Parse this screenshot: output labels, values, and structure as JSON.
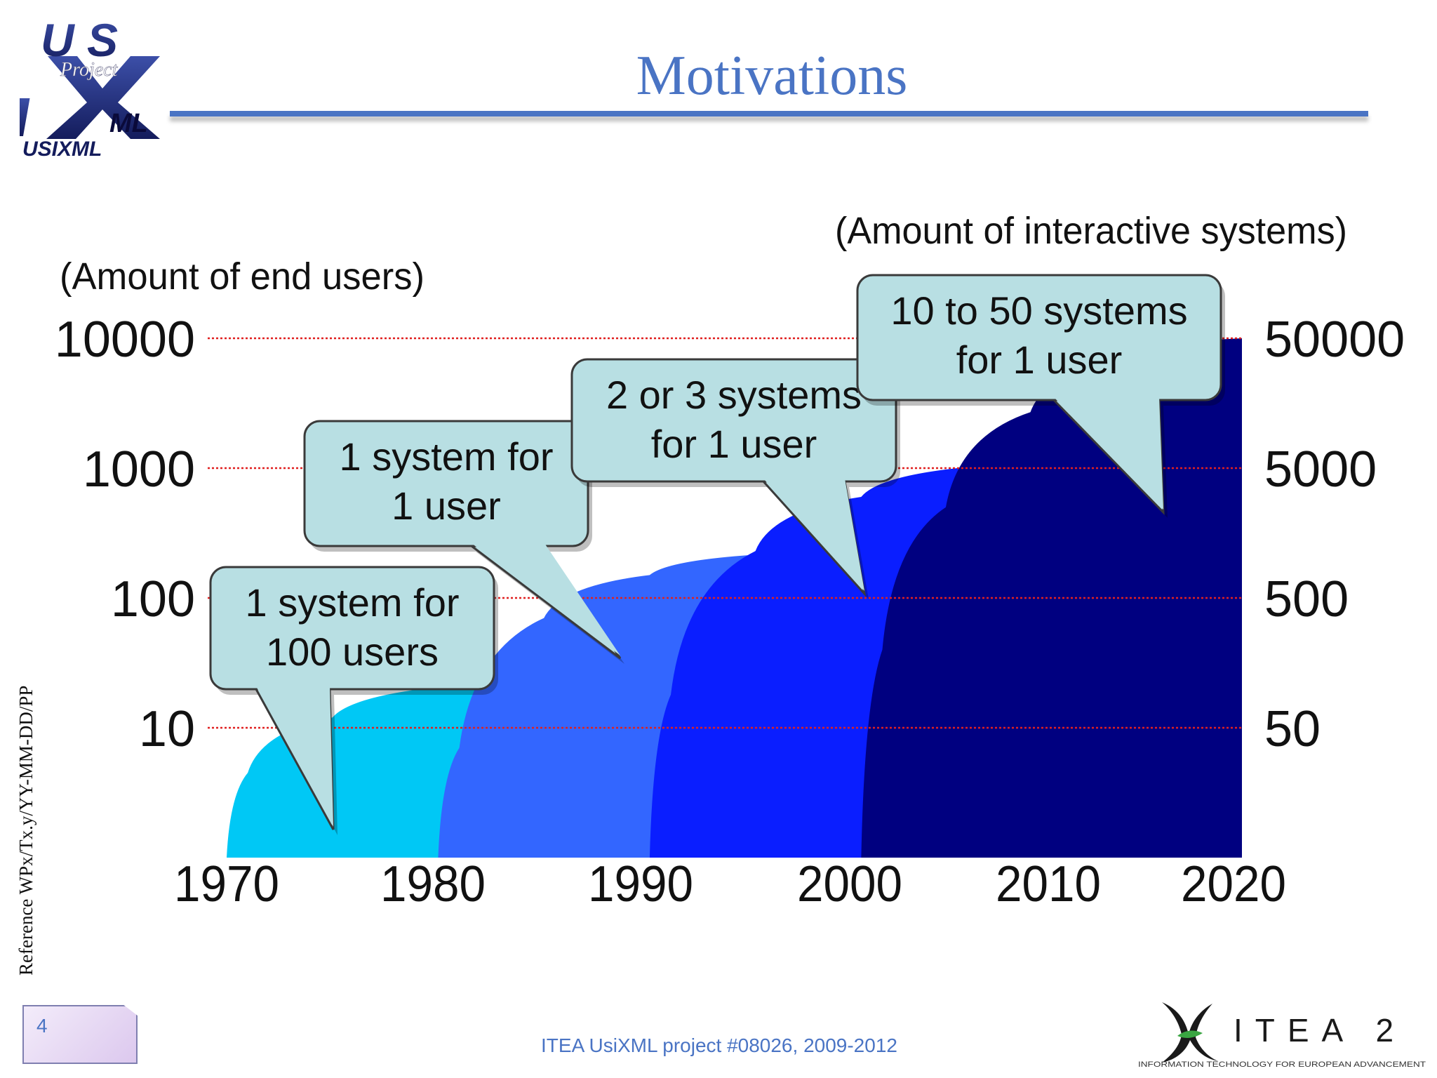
{
  "header": {
    "title": "Motivations",
    "logo": {
      "letters_top": "U S",
      "script": "Project",
      "letters_bottom": "ML",
      "name": "USIXML"
    }
  },
  "side_reference": "Reference WPx/Tx.y/YY-MM-DD/PP",
  "footer": {
    "page_number": "4",
    "text": "ITEA UsiXML project #08026, 2009-2012",
    "itea_logo": {
      "name": "ITEA 2",
      "tagline": "INFORMATION TECHNOLOGY FOR EUROPEAN ADVANCEMENT"
    }
  },
  "chart_data": {
    "type": "area",
    "ylabel_left": "(Amount of end users)",
    "ylabel_right": "(Amount of interactive systems)",
    "x_ticks": [
      "1970",
      "1980",
      "1990",
      "2000",
      "2010",
      "2020"
    ],
    "xlim": [
      1970,
      2018
    ],
    "y_scale": "log",
    "y_left_ticks": [
      {
        "value": 10,
        "label": "10"
      },
      {
        "value": 100,
        "label": "100"
      },
      {
        "value": 1000,
        "label": "1000"
      },
      {
        "value": 10000,
        "label": "10000"
      }
    ],
    "y_right_ticks": [
      {
        "value": 10,
        "label": "50"
      },
      {
        "value": 100,
        "label": "500"
      },
      {
        "value": 1000,
        "label": "5000"
      },
      {
        "value": 10000,
        "label": "50000"
      }
    ],
    "ylim": [
      1,
      10000
    ],
    "grid": true,
    "colors": {
      "grid": "#e02020",
      "callout_fill": "#b8dfe3",
      "callout_stroke": "#3a3a3a"
    },
    "series": [
      {
        "color": "#00c8f5",
        "points": [
          [
            1970,
            1
          ],
          [
            1971,
            4.5
          ],
          [
            1975,
            12
          ],
          [
            1982,
            22
          ]
        ]
      },
      {
        "color": "#3366ff",
        "points": [
          [
            1980,
            1
          ],
          [
            1981,
            7
          ],
          [
            1985,
            70
          ],
          [
            1990,
            150
          ],
          [
            1996,
            220
          ]
        ]
      },
      {
        "color": "#0a1eff",
        "points": [
          [
            1990,
            1
          ],
          [
            1991,
            18
          ],
          [
            1995,
            230
          ],
          [
            2000,
            600
          ],
          [
            2006,
            1050
          ]
        ]
      },
      {
        "color": "#000080",
        "points": [
          [
            2000,
            1
          ],
          [
            2001,
            40
          ],
          [
            2004,
            500
          ],
          [
            2008,
            2700
          ],
          [
            2013,
            7500
          ],
          [
            2018,
            10000
          ]
        ]
      }
    ],
    "callouts": [
      {
        "lines": [
          "1 system for",
          "100 users"
        ]
      },
      {
        "lines": [
          "1 system for",
          "1 user"
        ]
      },
      {
        "lines": [
          "2 or 3 systems",
          "for 1 user"
        ]
      },
      {
        "lines": [
          "10 to 50 systems",
          "for 1 user"
        ]
      }
    ]
  }
}
